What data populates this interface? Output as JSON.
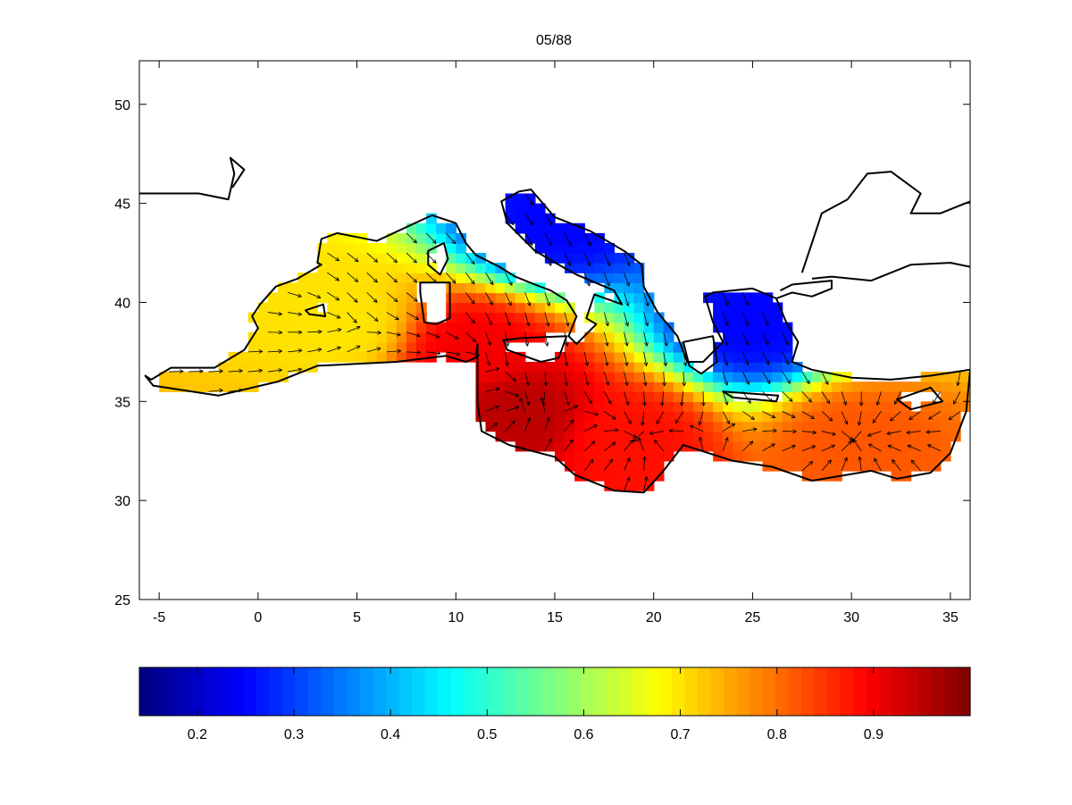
{
  "chart_data": {
    "type": "heatmap",
    "title": "05/88",
    "xlabel": "",
    "ylabel": "",
    "xlim": [
      -6,
      36
    ],
    "ylim": [
      25,
      52.2
    ],
    "xticks": [
      -5,
      0,
      5,
      10,
      15,
      20,
      25,
      30,
      35
    ],
    "yticks": [
      25,
      30,
      35,
      40,
      45,
      50
    ],
    "colorbar": {
      "colormap": "jet",
      "range": [
        0.14,
        1.0
      ],
      "ticks": [
        0.2,
        0.3,
        0.4,
        0.5,
        0.6,
        0.7,
        0.8,
        0.9
      ],
      "placement": "bottom"
    },
    "field_peaks": [
      {
        "lon": 13.0,
        "lat": 34.5,
        "value": 0.95
      },
      {
        "lon": 11.0,
        "lat": 37.5,
        "value": 0.9
      },
      {
        "lon": 19.0,
        "lat": 33.0,
        "value": 0.88
      },
      {
        "lon": 30.0,
        "lat": 33.0,
        "value": 0.82
      },
      {
        "lon": 4.0,
        "lat": 39.0,
        "value": 0.7
      },
      {
        "lon": 15.0,
        "lat": 44.0,
        "value": 0.25
      },
      {
        "lon": 25.0,
        "lat": 39.0,
        "value": 0.25
      }
    ],
    "grid": false,
    "overlay": "wind vectors (arrows) over sea grid, coastline outline"
  }
}
